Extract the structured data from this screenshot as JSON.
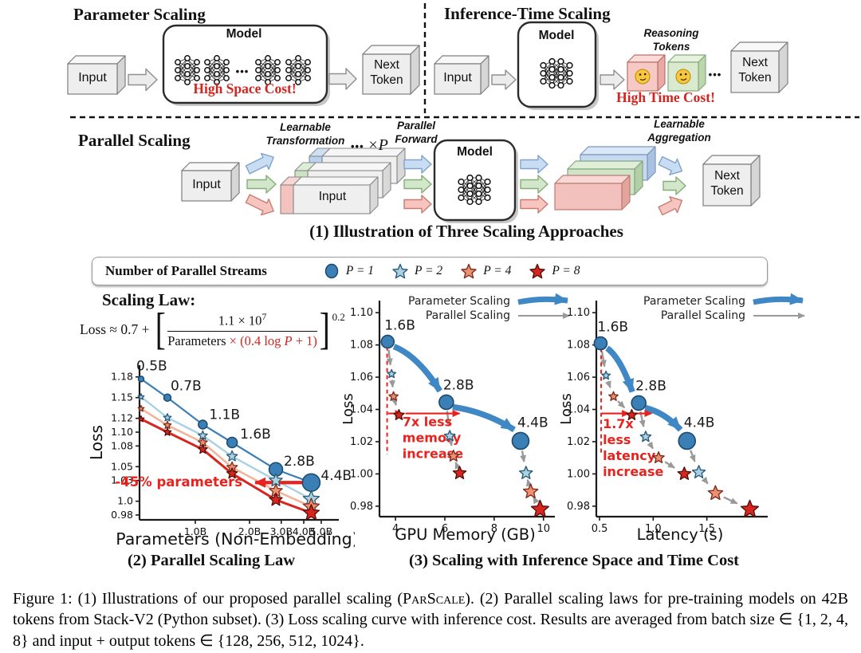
{
  "panels": {
    "parameter_scaling": {
      "title": "Parameter Scaling",
      "input": "Input",
      "model": "Model",
      "dots": "•••",
      "cost": "High Space Cost!",
      "next_token": "Next Token"
    },
    "inference_time_scaling": {
      "title": "Inference-Time Scaling",
      "input": "Input",
      "model": "Model",
      "reasoning_tokens": "Reasoning\nTokens",
      "dots": "•••",
      "cost": "High Time Cost!",
      "next_token": "Next Token",
      "token_icon": "thinking-face"
    },
    "parallel_scaling": {
      "title": "Parallel Scaling",
      "input": "Input",
      "stacked_input": "Input",
      "learnable_transformation": "Learnable\nTransformation",
      "dots": "•••",
      "times_p": "×P",
      "parallel_forward": "Parallel\nForward",
      "model": "Model",
      "learnable_aggregation": "Learnable\nAggregation",
      "next_token": "Next Token"
    },
    "caption": "(1) Illustration of Three Scaling Approaches"
  },
  "legend": {
    "label": "Number of Parallel Streams",
    "items": [
      {
        "label": "P = 1",
        "marker": "circle",
        "color_index": 0
      },
      {
        "label": "P = 2",
        "marker": "star",
        "color_index": 1
      },
      {
        "label": "P = 4",
        "marker": "star",
        "color_index": 2
      },
      {
        "label": "P = 8",
        "marker": "star",
        "color_index": 3
      }
    ]
  },
  "colors": [
    {
      "fill": "#3a7fb5",
      "edge": "#1c4a6e",
      "line": "#3a7fb5"
    },
    {
      "fill": "#a9d1e2",
      "edge": "#2b5a78",
      "line": "#a9d1e2"
    },
    {
      "fill": "#ee9170",
      "edge": "#7c2d1e",
      "line": "#f2b49c"
    },
    {
      "fill": "#d6261f",
      "edge": "#551009",
      "line": "#d6261f"
    }
  ],
  "accent": {
    "annotation_red": "#e8231e",
    "param_arrow_blue": "#3f88c5",
    "parallel_arrow_gray": "#999999"
  },
  "scaling_law": {
    "heading": "Scaling Law:",
    "lhs": "Loss ≈ 0.7 +",
    "num_base": "1.1 × 10",
    "num_exp": "7",
    "den_black": "Parameters ",
    "den_red_pre": "× (0.4 log ",
    "den_red_p": "P",
    "den_red_post": " + 1)",
    "exponent": "0.2"
  },
  "chart_data": [
    {
      "type": "line",
      "name": "parallel-scaling-law",
      "xlabel": "Parameters (Non-Embedding)",
      "ylabel": "Loss",
      "xscale": "log",
      "xlim": [
        0.49,
        5.95
      ],
      "ylim": [
        0.973,
        1.197
      ],
      "xticks": [
        {
          "v": 1,
          "label": "1.0B"
        },
        {
          "v": 2,
          "label": "2.0B"
        },
        {
          "v": 3,
          "label": "3.0B"
        },
        {
          "v": 4,
          "label": "4.0B"
        },
        {
          "v": 5,
          "label": "5.0B"
        }
      ],
      "yticks": [
        {
          "v": 1.18,
          "label": "1.18"
        },
        {
          "v": 1.15,
          "label": "1.15"
        },
        {
          "v": 1.12,
          "label": "1.12"
        },
        {
          "v": 1.1,
          "label": "1.10"
        },
        {
          "v": 1.08,
          "label": "1.08"
        },
        {
          "v": 1.05,
          "label": "1.05"
        },
        {
          "v": 1.03,
          "label": "1.03"
        },
        {
          "v": 1.0,
          "label": "1.0"
        },
        {
          "v": 0.98,
          "label": "0.98"
        }
      ],
      "x": [
        0.5,
        0.7,
        1.1,
        1.6,
        2.8,
        4.4
      ],
      "point_labels": [
        "0.5B",
        "0.7B",
        "1.1B",
        "1.6B",
        "2.8B",
        "4.4B"
      ],
      "series": [
        {
          "name": "P = 1",
          "values": [
            1.177,
            1.15,
            1.111,
            1.085,
            1.046,
            1.027
          ]
        },
        {
          "name": "P = 2",
          "values": [
            1.151,
            1.121,
            1.095,
            1.065,
            1.03,
            1.003
          ]
        },
        {
          "name": "P = 4",
          "values": [
            1.134,
            1.11,
            1.085,
            1.049,
            1.015,
            0.992
          ]
        },
        {
          "name": "P = 8",
          "values": [
            1.119,
            1.1,
            1.075,
            1.04,
            1.002,
            0.983
          ]
        }
      ],
      "annotation": {
        "text": "-45% parameters",
        "arrow_from": [
          4.35,
          1.027
        ],
        "arrow_to": [
          2.15,
          1.027
        ]
      }
    },
    {
      "type": "scatter",
      "name": "loss-vs-gpu-memory",
      "xlabel": "GPU Memory (GB)",
      "ylabel": "Loss",
      "xlim": [
        3.35,
        10.3
      ],
      "ylim": [
        0.9735,
        1.1075
      ],
      "xticks": [
        {
          "v": 4,
          "label": "4"
        },
        {
          "v": 6,
          "label": "6"
        },
        {
          "v": 8,
          "label": "8"
        },
        {
          "v": 10,
          "label": "10"
        }
      ],
      "yticks": [
        {
          "v": 1.1,
          "label": "1.10"
        },
        {
          "v": 1.08,
          "label": "1.08"
        },
        {
          "v": 1.06,
          "label": "1.06"
        },
        {
          "v": 1.04,
          "label": "1.04"
        },
        {
          "v": 1.02,
          "label": "1.02"
        },
        {
          "v": 1.0,
          "label": "1.00"
        },
        {
          "v": 0.98,
          "label": "0.98"
        }
      ],
      "legend": {
        "param": "Parameter Scaling",
        "parallel": "Parallel Scaling"
      },
      "clusters": [
        {
          "label": "1.6B",
          "points": [
            [
              3.68,
              1.082
            ],
            [
              3.84,
              1.062
            ],
            [
              3.92,
              1.048
            ],
            [
              4.14,
              1.0365
            ]
          ]
        },
        {
          "label": "2.8B",
          "points": [
            [
              6.06,
              1.0445
            ],
            [
              6.2,
              1.0235
            ],
            [
              6.35,
              1.011
            ],
            [
              6.6,
              1.0005
            ]
          ]
        },
        {
          "label": "4.4B",
          "points": [
            [
              9.07,
              1.0205
            ],
            [
              9.29,
              1.0005
            ],
            [
              9.48,
              0.989
            ],
            [
              9.86,
              0.978
            ]
          ]
        }
      ],
      "annotation": {
        "lines": [
          "7x less",
          "memory",
          "increase"
        ],
        "vline_x": 3.66,
        "vline_y": [
          1.079,
          1.012
        ],
        "arrow_y": 1.0375,
        "arrows": [
          [
            3.7,
            4.27
          ],
          [
            4.4,
            6.6
          ]
        ],
        "text_pos": [
          4.28,
          1.0295
        ]
      }
    },
    {
      "type": "scatter",
      "name": "loss-vs-latency",
      "xlabel": "Latency (s)",
      "ylabel": "Loss",
      "xlim": [
        0.47,
        2.03
      ],
      "ylim": [
        0.9735,
        1.1075
      ],
      "xticks": [
        {
          "v": 0.5,
          "label": "0.5"
        },
        {
          "v": 1.0,
          "label": "1.0"
        },
        {
          "v": 1.5,
          "label": "1.5"
        }
      ],
      "yticks": [
        {
          "v": 1.1,
          "label": "1.10"
        },
        {
          "v": 1.08,
          "label": "1.08"
        },
        {
          "v": 1.06,
          "label": "1.06"
        },
        {
          "v": 1.04,
          "label": "1.04"
        },
        {
          "v": 1.02,
          "label": "1.02"
        },
        {
          "v": 1.0,
          "label": "1.00"
        },
        {
          "v": 0.98,
          "label": "0.98"
        }
      ],
      "legend": {
        "param": "Parameter Scaling",
        "parallel": "Parallel Scaling"
      },
      "clusters": [
        {
          "label": "1.6B",
          "points": [
            [
              0.51,
              1.081
            ],
            [
              0.56,
              1.061
            ],
            [
              0.63,
              1.048
            ],
            [
              0.8,
              1.0365
            ]
          ]
        },
        {
          "label": "2.8B",
          "points": [
            [
              0.865,
              1.044
            ],
            [
              0.93,
              1.023
            ],
            [
              1.05,
              1.01
            ],
            [
              1.29,
              1.0
            ]
          ]
        },
        {
          "label": "4.4B",
          "points": [
            [
              1.315,
              1.0205
            ],
            [
              1.425,
              1.001
            ],
            [
              1.58,
              0.988
            ],
            [
              1.9,
              0.978
            ]
          ]
        }
      ],
      "annotation": {
        "lines": [
          "1.7x",
          "less",
          "latency",
          "increase"
        ],
        "vline_x": 0.515,
        "vline_y": [
          1.078,
          1.012
        ],
        "arrow_y": 1.0375,
        "arrows": [
          [
            0.52,
            0.775
          ],
          [
            0.83,
            0.985
          ]
        ],
        "text_pos": [
          0.53,
          1.0285
        ]
      }
    }
  ],
  "captions": {
    "chart2": "(2) Parallel Scaling Law",
    "chart3": "(3) Scaling with Inference Space and Time Cost"
  },
  "figure_caption": {
    "before": "Figure 1: (1) Illustrations of our proposed parallel scaling (",
    "smallcaps": "ParScale",
    "after": "). (2) Parallel scaling laws for pre-training models on 42B tokens from Stack-V2 (Python subset). (3) Loss scaling curve with inference cost. Results are averaged from batch size ∈ {1, 2, 4, 8} and input + output tokens ∈ {128, 256, 512, 1024}."
  }
}
